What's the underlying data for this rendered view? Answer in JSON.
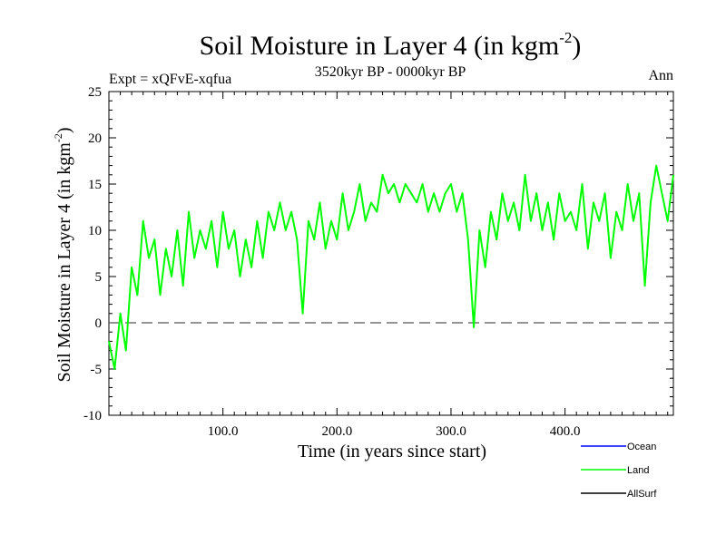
{
  "chart_data": {
    "type": "line",
    "title": "Soil Moisture in Layer 4 (in kgm",
    "title_sup": "-2",
    "title_close": ")",
    "subtitle": "3520kyr BP - 0000kyr BP",
    "expt_label": "Expt = xQFvE-xqfua",
    "season_label": "Ann",
    "xlabel": "Time (in years since start)",
    "ylabel": "Soil Moisture in Layer 4 (in kgm",
    "ylabel_sup": "-2",
    "ylabel_close": ")",
    "xlim": [
      0,
      495
    ],
    "ylim": [
      -10,
      25
    ],
    "x_ticks": [
      100,
      200,
      300,
      400
    ],
    "x_tick_labels": [
      "100.0",
      "200.0",
      "300.0",
      "400.0"
    ],
    "y_ticks": [
      -10,
      -5,
      0,
      5,
      10,
      15,
      20,
      25
    ],
    "y_tick_labels": [
      "-10",
      "-5",
      "0",
      "5",
      "10",
      "15",
      "20",
      "25"
    ],
    "zero_line": 0,
    "legend": [
      {
        "name": "Ocean",
        "color": "#0000ff"
      },
      {
        "name": "Land",
        "color": "#00ff00"
      },
      {
        "name": "AllSurf",
        "color": "#000000"
      }
    ],
    "series": [
      {
        "name": "Land",
        "color": "#00ff00",
        "x": [
          0,
          5,
          10,
          15,
          20,
          25,
          30,
          35,
          40,
          45,
          50,
          55,
          60,
          65,
          70,
          75,
          80,
          85,
          90,
          95,
          100,
          105,
          110,
          115,
          120,
          125,
          130,
          135,
          140,
          145,
          150,
          155,
          160,
          165,
          170,
          175,
          180,
          185,
          190,
          195,
          200,
          205,
          210,
          215,
          220,
          225,
          230,
          235,
          240,
          245,
          250,
          255,
          260,
          265,
          270,
          275,
          280,
          285,
          290,
          295,
          300,
          305,
          310,
          315,
          320,
          325,
          330,
          335,
          340,
          345,
          350,
          355,
          360,
          365,
          370,
          375,
          380,
          385,
          390,
          395,
          400,
          405,
          410,
          415,
          420,
          425,
          430,
          435,
          440,
          445,
          450,
          455,
          460,
          465,
          470,
          475,
          480,
          485,
          490,
          495
        ],
        "values": [
          -2,
          -5,
          1,
          -3,
          6,
          3,
          11,
          7,
          9,
          3,
          8,
          5,
          10,
          4,
          12,
          7,
          10,
          8,
          11,
          6,
          12,
          8,
          10,
          5,
          9,
          6,
          11,
          7,
          12,
          10,
          13,
          10,
          12,
          9,
          1,
          11,
          9,
          13,
          8,
          11,
          9,
          14,
          10,
          12,
          15,
          11,
          13,
          12,
          16,
          14,
          15,
          13,
          15,
          14,
          13,
          15,
          12,
          14,
          12,
          14,
          15,
          12,
          14,
          9,
          -0.5,
          10,
          6,
          12,
          9,
          14,
          11,
          13,
          10,
          16,
          11,
          14,
          10,
          13,
          9,
          14,
          11,
          12,
          10,
          15,
          8,
          13,
          11,
          14,
          7,
          12,
          10,
          15,
          11,
          14,
          4,
          13,
          17,
          14,
          11,
          16
        ]
      }
    ]
  }
}
